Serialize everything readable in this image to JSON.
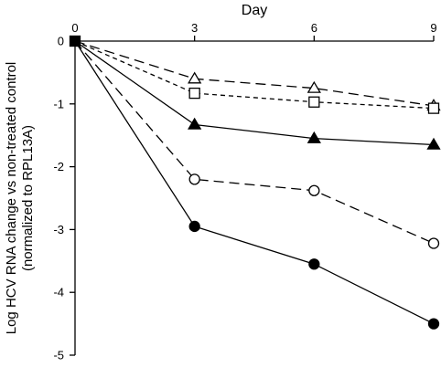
{
  "chart_data": {
    "type": "line",
    "title": "",
    "xlabel": "Day",
    "ylabel": "Log HCV RNA change vs non-treated control",
    "ylabel2": "(normalized to RPL13A)",
    "x_ticks": [
      "0",
      "3",
      "6",
      "9"
    ],
    "y_ticks": [
      "0",
      "-1",
      "-2",
      "-3",
      "-4",
      "-5"
    ],
    "xlim": [
      0,
      9
    ],
    "ylim": [
      -5,
      0
    ],
    "x_axis_position": "top",
    "grid": false,
    "legend": "none",
    "x": [
      0,
      3,
      6,
      9
    ],
    "series": [
      {
        "marker": "open-triangle",
        "line": "long-dash",
        "values": [
          0,
          -0.6,
          -0.75,
          -1.03
        ]
      },
      {
        "marker": "open-square",
        "line": "short-dash",
        "values": [
          0,
          -0.83,
          -0.97,
          -1.07
        ]
      },
      {
        "marker": "filled-triangle",
        "line": "solid",
        "values": [
          0,
          -1.33,
          -1.55,
          -1.65
        ]
      },
      {
        "marker": "open-circle",
        "line": "long-dash",
        "values": [
          0,
          -2.2,
          -2.38,
          -3.22
        ]
      },
      {
        "marker": "filled-circle",
        "line": "solid",
        "values": [
          0,
          -2.95,
          -3.55,
          -4.5
        ]
      }
    ],
    "origin_marker": "filled-square",
    "colors": {
      "line": "#000000",
      "marker_fill": "#000000",
      "background": "#ffffff"
    }
  }
}
